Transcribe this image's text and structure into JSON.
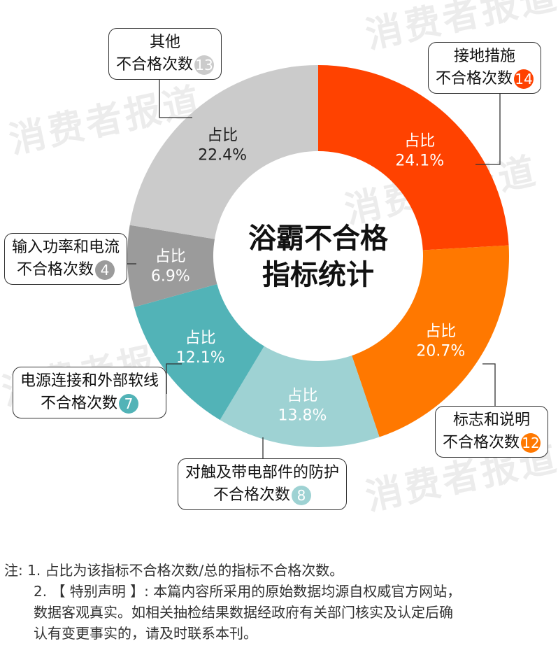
{
  "watermark": "消费者报道",
  "chart_data": {
    "type": "pie",
    "donut": true,
    "title": "浴霸不合格指标统计",
    "title_lines": [
      "浴霸不合格",
      "指标统计"
    ],
    "slice_prefix": "占比",
    "count_label": "不合格次数",
    "slices": [
      {
        "name": "接地措施",
        "count": 14,
        "percent": "24.1%",
        "value": 24.1,
        "color": "#FF4200"
      },
      {
        "name": "标志和说明",
        "count": 12,
        "percent": "20.7%",
        "value": 20.7,
        "color": "#FF7800"
      },
      {
        "name": "对触及带电部件的防护",
        "count": 8,
        "percent": "13.8%",
        "value": 13.8,
        "color": "#9ED2D3"
      },
      {
        "name": "电源连接和外部软线",
        "count": 7,
        "percent": "12.1%",
        "value": 12.1,
        "color": "#52B3B7"
      },
      {
        "name": "输入功率和电流",
        "count": 4,
        "percent": "6.9%",
        "value": 6.9,
        "color": "#9B9B9B"
      },
      {
        "name": "其他",
        "count": 13,
        "percent": "22.4%",
        "value": 22.4,
        "color": "#CBCBCB"
      }
    ]
  },
  "notes": [
    "注: 1. 占比为该指标不合格次数/总的指标不合格次数。",
    "2. 【 特别声明 】: 本篇内容所采用的原始数据均源自权威官方网站，",
    "数据客观真实。如相关抽检结果数据经政府有关部门核实及认定后确",
    "认有变更事实的，请及时联系本刊。"
  ]
}
